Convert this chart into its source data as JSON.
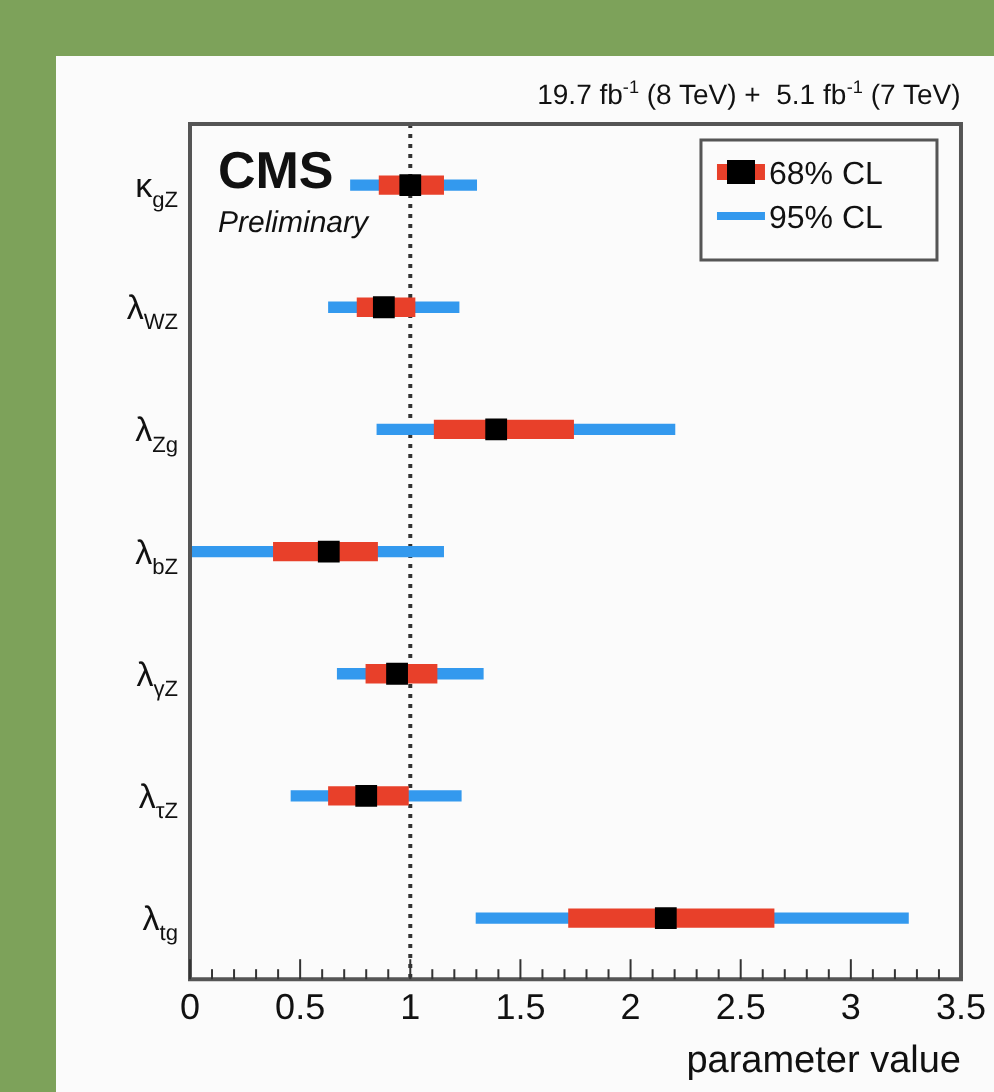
{
  "chart_data": {
    "type": "bar",
    "orientation": "horizontal",
    "title": "19.7 fb$^{-1}$ (8 TeV) +  5.1 fb$^{-1}$ (7 TeV)",
    "xlabel": "parameter value",
    "categories": [
      "κ$_{gZ}$",
      "λ$_{WZ}$",
      "λ$_{Zg}$",
      "λ$_{bZ}$",
      "λ$_{γZ}$",
      "λ$_{τZ}$",
      "λ$_{tg}$"
    ],
    "series": [
      {
        "name": "68% CL",
        "color": "#e8402a",
        "base": [
          0.86,
          0.76,
          1.11,
          0.38,
          0.8,
          0.63,
          1.72
        ],
        "values": [
          0.29,
          0.26,
          0.63,
          0.47,
          0.32,
          0.36,
          0.93
        ]
      },
      {
        "name": "95% CL",
        "color": "#3399ee",
        "base": [
          0.73,
          0.63,
          0.85,
          0.0,
          0.67,
          0.46,
          1.3
        ],
        "values": [
          0.57,
          0.59,
          1.35,
          1.15,
          0.66,
          0.77,
          1.96
        ]
      },
      {
        "type": "scatter",
        "color": "#000000",
        "marker": "square",
        "values": [
          1.0,
          0.88,
          1.39,
          0.63,
          0.94,
          0.8,
          2.16
        ]
      }
    ],
    "xlim": [
      0,
      3.5
    ],
    "xticks": [
      0,
      0.5,
      1,
      1.5,
      2,
      2.5,
      3,
      3.5
    ],
    "ref_lines": [
      {
        "axis": "x",
        "value": 1,
        "color": "#333333",
        "line_style": "dotted"
      }
    ],
    "annotations": [
      "CMS",
      "Preliminary"
    ],
    "legend": "top right",
    "grid": false
  }
}
